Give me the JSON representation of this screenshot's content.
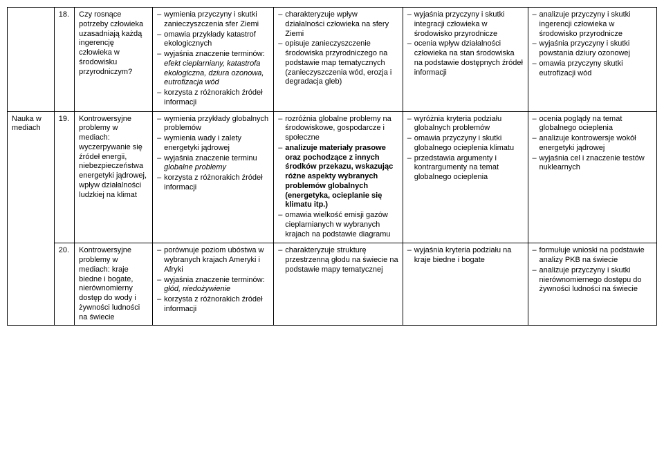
{
  "rows": [
    {
      "section": "",
      "num": "18.",
      "topic": "Czy rosnące potrzeby człowieka uzasadniają każdą ingerencję człowieka w środowisku przyrodniczym?",
      "colA": [
        "wymienia przyczyny i skutki zanieczyszczenia sfer Ziemi",
        "omawia przykłady katastrof ekologicznych",
        "wyjaśnia znaczenie terminów: <em>efekt cieplarniany, katastrofa ekologiczna, dziura ozonowa, eutrofizacja wód</em>",
        "korzysta z różnorakich źródeł informacji"
      ],
      "colB": [
        "charakteryzuje wpływ działalności człowieka na sfery Ziemi",
        "opisuje zanieczyszczenie środowiska przyrodniczego na podstawie map tematycznych (zanieczyszczenia wód, erozja i degradacja gleb)"
      ],
      "colC": [
        "wyjaśnia przyczyny i skutki integracji człowieka w środowisko przyrodnicze",
        "ocenia wpływ działalności człowieka na stan środowiska na podstawie dostępnych źródeł informacji"
      ],
      "colD": [
        "analizuje przyczyny i skutki ingerencji człowieka w środowisko przyrodnicze",
        "wyjaśnia przyczyny i skutki powstania dziury ozonowej",
        "omawia przyczyny skutki eutrofizacji wód"
      ]
    },
    {
      "section": "Nauka w mediach",
      "num": "19.",
      "topic": "Kontrowersyjne problemy w mediach: wyczerpywanie się źródeł energii, niebezpieczeństwa energetyki jądrowej, wpływ działalności ludzkiej na klimat",
      "colA": [
        "wymienia przykłady globalnych problemów",
        "wymienia wady i zalety energetyki jądrowej",
        "wyjaśnia znaczenie terminu <em>globalne problemy</em>",
        "korzysta z różnorakich źródeł informacji"
      ],
      "colB": [
        "rozróżnia globalne problemy na środowiskowe, gospodarcze i społeczne",
        "<b>analizuje materiały prasowe oraz pochodzące z innych środków przekazu, wskazując różne aspekty wybranych problemów globalnych (energetyka, ocieplanie się klimatu itp.)</b>",
        "omawia wielkość emisji gazów cieplarnianych w wybranych krajach na podstawie diagramu"
      ],
      "colC": [
        "wyróżnia kryteria podziału globalnych problemów",
        "omawia przyczyny i skutki globalnego ocieplenia klimatu",
        "przedstawia argumenty i kontrargumenty na temat globalnego ocieplenia"
      ],
      "colD": [
        "ocenia poglądy na temat globalnego ocieplenia",
        "analizuje kontrowersje wokół energetyki jądrowej",
        "wyjaśnia cel i znaczenie testów nuklearnych"
      ]
    },
    {
      "section": "",
      "num": "20.",
      "topic": "Kontrowersyjne problemy w mediach: kraje biedne i bogate, nierównomierny dostęp do wody i żywności ludności na świecie",
      "colA": [
        "porównuje poziom ubóstwa w wybranych krajach Ameryki i Afryki",
        "wyjaśnia znaczenie terminów: <em>głód, niedożywienie</em>",
        "korzysta z różnorakich źródeł informacji"
      ],
      "colB": [
        "charakteryzuje strukturę przestrzenną głodu na świecie na podstawie mapy tematycznej"
      ],
      "colC": [
        "wyjaśnia kryteria podziału na kraje biedne i bogate"
      ],
      "colD": [
        "formułuje wnioski na podstawie analizy PKB na świecie",
        "analizuje przyczyny i skutki nierównomiernego dostępu do żywności ludności na świecie"
      ]
    }
  ]
}
